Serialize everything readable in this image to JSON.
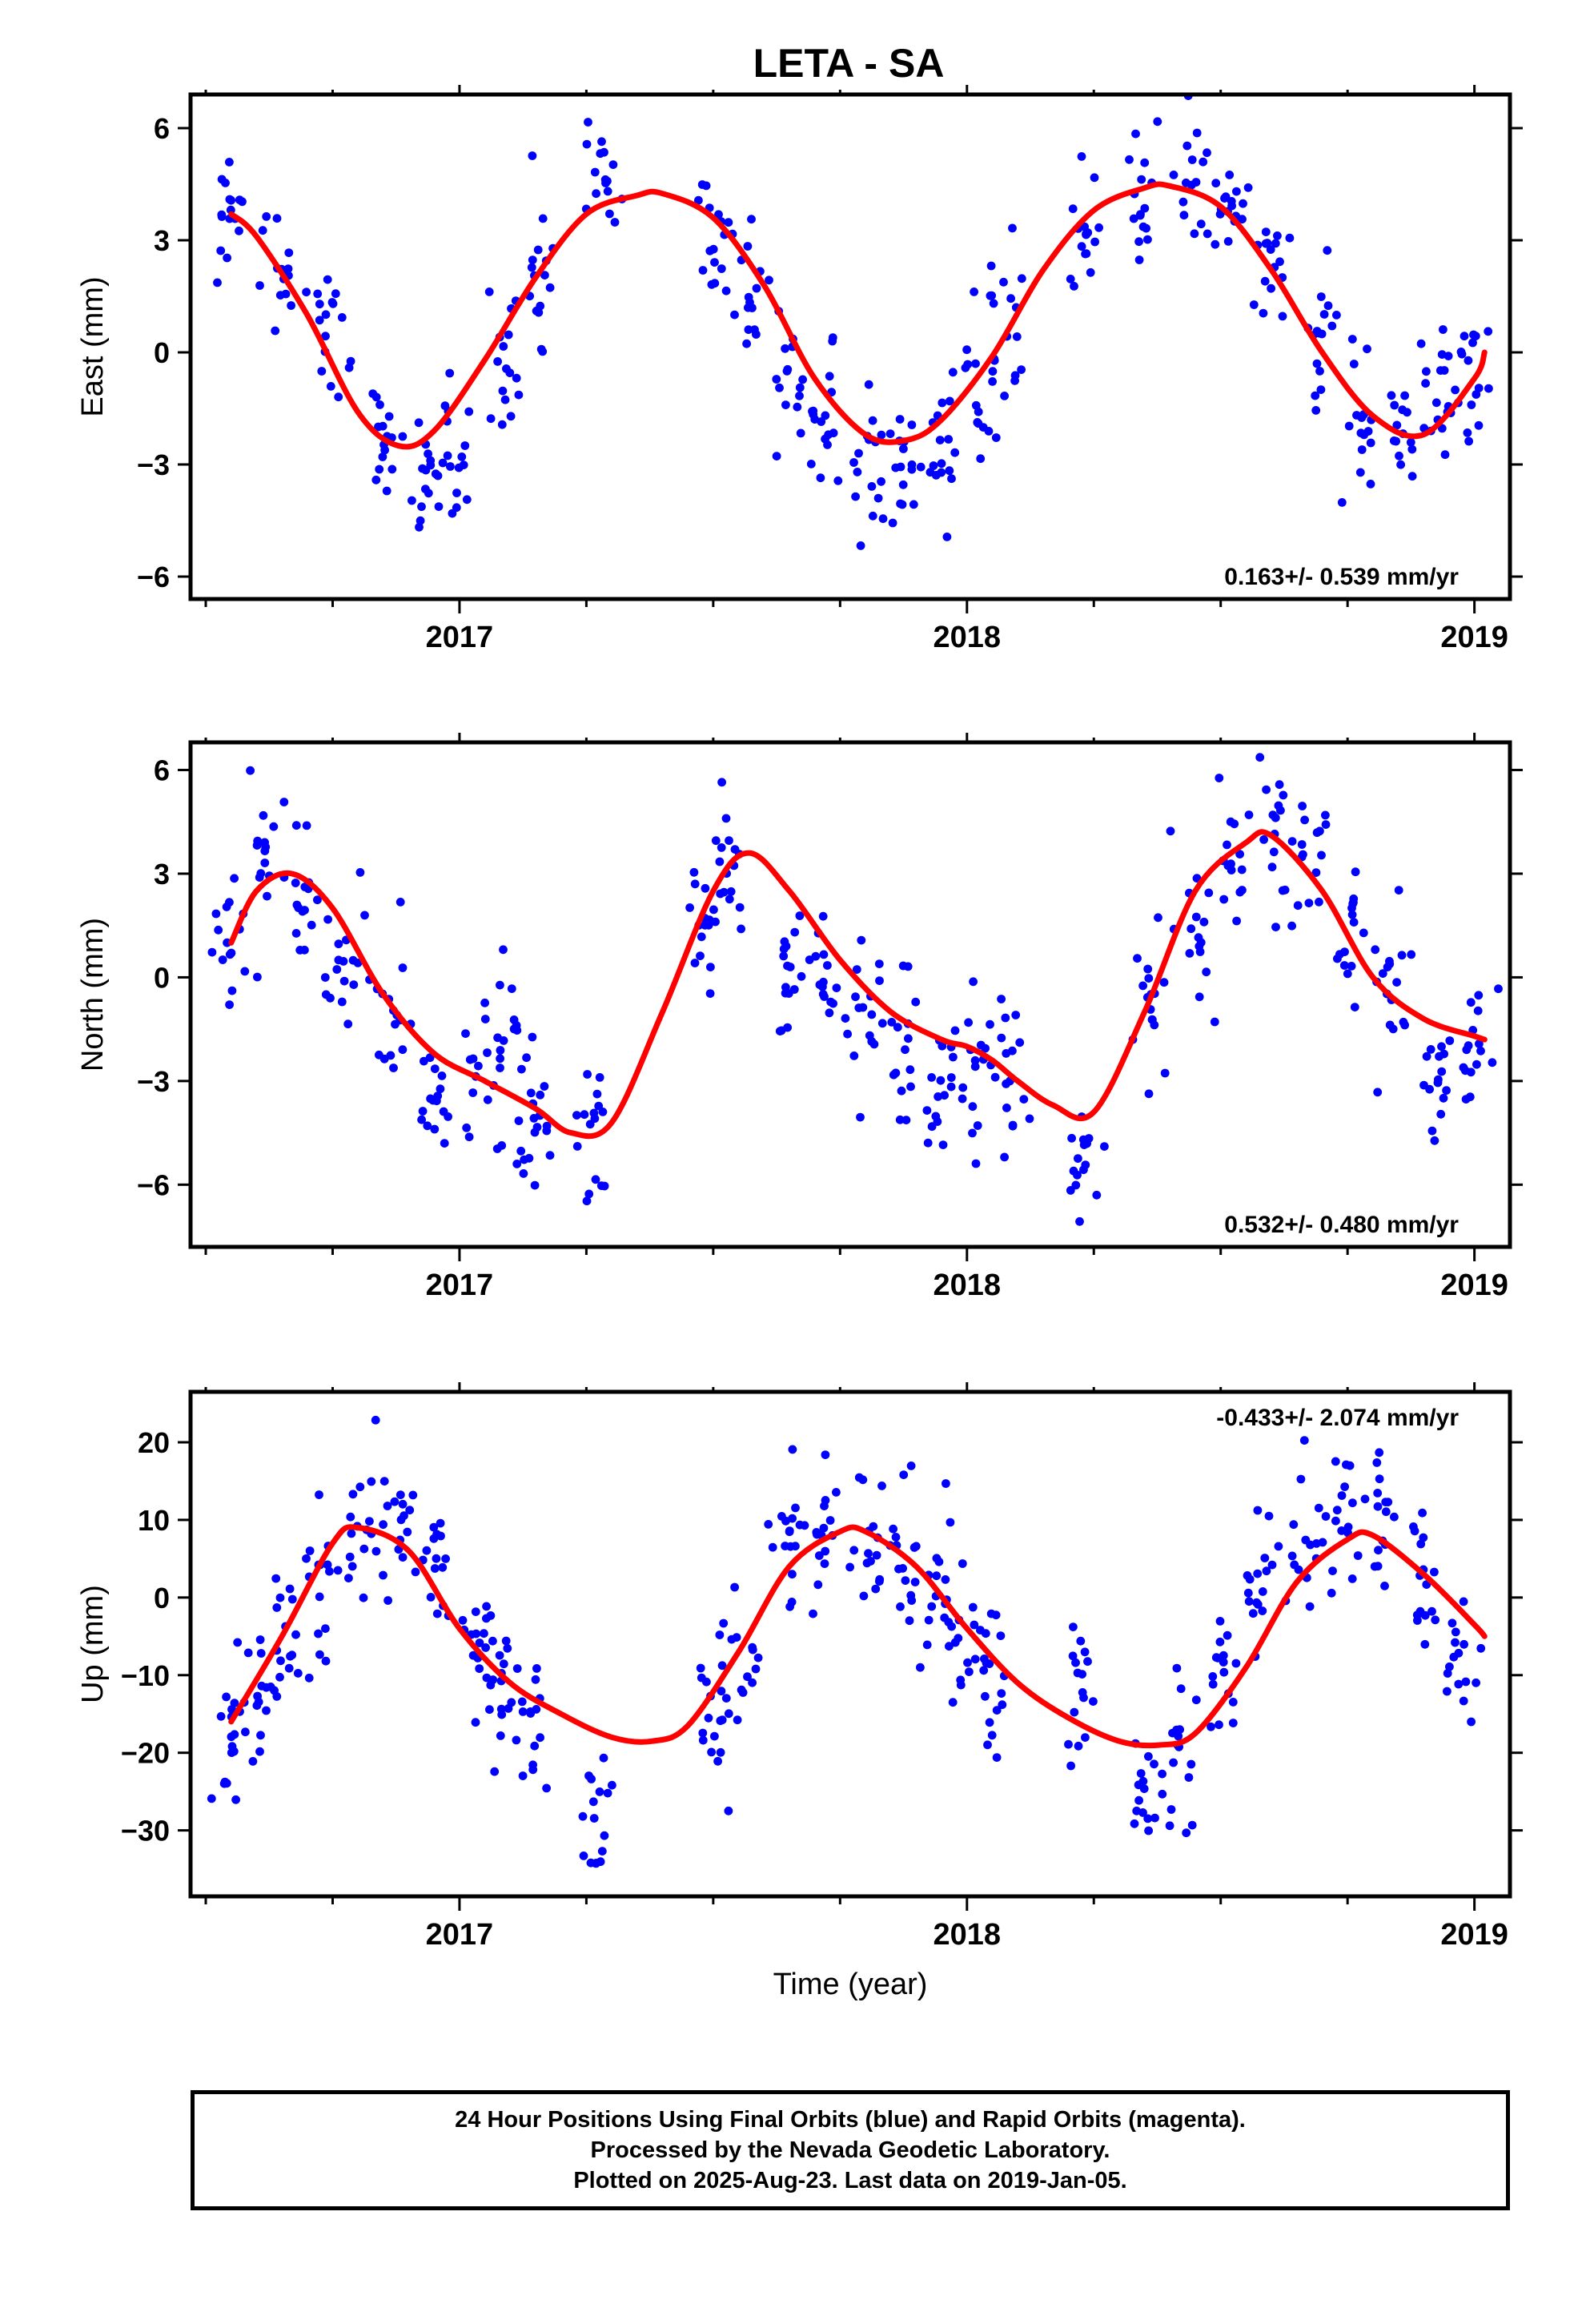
{
  "title": "LETA - SA",
  "xlabel": "Time (year)",
  "colors": {
    "final_orbits": "#0000ff",
    "model": "#ff0000",
    "frame": "#000000"
  },
  "footer": {
    "lines": [
      "24 Hour Positions Using Final Orbits (blue) and Rapid Orbits (magenta).",
      "Processed by the Nevada Geodetic Laboratory.",
      "Plotted on 2025-Aug-23. Last data on 2019-Jan-05."
    ]
  },
  "chart_data": [
    {
      "type": "scatter",
      "component": "East",
      "ylabel": "East (mm)",
      "rate_label": "0.163+/- 0.539 mm/yr",
      "xlim": [
        2016.47,
        2019.07
      ],
      "ylim": [
        -6.6,
        6.9
      ],
      "xticks": [
        2017,
        2018,
        2019
      ],
      "yticks": [
        -6,
        -3,
        0,
        3,
        6
      ],
      "ytick_labels": [
        "−6",
        "−3",
        "0",
        "3",
        "6"
      ],
      "model_curve": {
        "x": [
          2016.55,
          2016.6,
          2016.7,
          2016.8,
          2016.88,
          2016.95,
          2017.05,
          2017.15,
          2017.25,
          2017.35,
          2017.4,
          2017.5,
          2017.6,
          2017.7,
          2017.8,
          2017.88,
          2017.95,
          2018.05,
          2018.15,
          2018.25,
          2018.35,
          2018.4,
          2018.5,
          2018.6,
          2018.7,
          2018.8,
          2018.9,
          2019.0,
          2019.02
        ],
        "y": [
          3.7,
          3.1,
          1.0,
          -1.6,
          -2.5,
          -2.1,
          -0.2,
          2.0,
          3.7,
          4.2,
          4.25,
          3.6,
          1.8,
          -0.7,
          -2.2,
          -2.35,
          -1.8,
          -0.1,
          2.2,
          3.8,
          4.4,
          4.45,
          3.9,
          2.2,
          0.0,
          -1.7,
          -2.2,
          -0.7,
          0.0
        ]
      },
      "cluster_centers": {
        "x": [
          2016.55,
          2016.65,
          2016.75,
          2016.85,
          2016.93,
          2017.0,
          2017.08,
          2017.16,
          2017.28,
          2017.5,
          2017.57,
          2017.65,
          2017.72,
          2017.8,
          2017.88,
          2017.95,
          2018.02,
          2018.08,
          2018.23,
          2018.35,
          2018.45,
          2018.52,
          2018.6,
          2018.7,
          2018.78,
          2018.86,
          2018.94,
          2019.0
        ],
        "y": [
          3.7,
          2.5,
          0.2,
          -2.0,
          -3.2,
          -2.5,
          -0.3,
          2.2,
          4.5,
          2.8,
          1.5,
          -1.0,
          -1.8,
          -2.5,
          -3.0,
          -2.4,
          -1.2,
          0.5,
          3.0,
          4.2,
          4.5,
          3.5,
          2.5,
          0.8,
          -1.2,
          -1.8,
          -1.3,
          -0.5
        ]
      }
    },
    {
      "type": "scatter",
      "component": "North",
      "ylabel": "North (mm)",
      "rate_label": "0.532+/- 0.480 mm/yr",
      "xlim": [
        2016.47,
        2019.07
      ],
      "ylim": [
        -7.8,
        6.8
      ],
      "xticks": [
        2017,
        2018,
        2019
      ],
      "yticks": [
        -6,
        -3,
        0,
        3,
        6
      ],
      "ytick_labels": [
        "−6",
        "−3",
        "0",
        "3",
        "6"
      ],
      "model_curve": {
        "x": [
          2016.55,
          2016.6,
          2016.67,
          2016.75,
          2016.85,
          2016.95,
          2017.05,
          2017.15,
          2017.22,
          2017.3,
          2017.4,
          2017.5,
          2017.57,
          2017.65,
          2017.75,
          2017.85,
          2017.95,
          2018.0,
          2018.05,
          2018.1,
          2018.17,
          2018.25,
          2018.35,
          2018.45,
          2018.55,
          2018.6,
          2018.7,
          2018.8,
          2018.9,
          2019.0,
          2019.02
        ],
        "y": [
          1.0,
          2.5,
          3.0,
          2.0,
          -0.5,
          -2.2,
          -3.0,
          -3.8,
          -4.5,
          -4.2,
          -1.0,
          2.5,
          3.6,
          2.5,
          0.5,
          -1.0,
          -1.8,
          -2.0,
          -2.4,
          -3.0,
          -3.7,
          -3.9,
          -1.0,
          2.5,
          3.9,
          4.1,
          2.5,
          0.0,
          -1.2,
          -1.7,
          -1.8
        ]
      },
      "cluster_centers": {
        "x": [
          2016.55,
          2016.62,
          2016.7,
          2016.78,
          2016.86,
          2016.95,
          2017.05,
          2017.1,
          2017.15,
          2017.27,
          2017.47,
          2017.53,
          2017.65,
          2017.72,
          2017.8,
          2017.88,
          2017.95,
          2018.02,
          2018.08,
          2018.22,
          2018.35,
          2018.45,
          2018.52,
          2018.6,
          2018.68,
          2018.76,
          2018.84,
          2018.92,
          2019.0
        ],
        "y": [
          1.5,
          3.5,
          2.5,
          0.5,
          -0.8,
          -2.8,
          -3.2,
          -2.5,
          -4.5,
          -5.0,
          1.5,
          3.2,
          0.5,
          -0.5,
          -1.5,
          -2.5,
          -2.8,
          -2.2,
          -3.0,
          -4.8,
          -1.0,
          1.5,
          3.0,
          4.2,
          3.5,
          1.0,
          -0.5,
          -2.5,
          -2.0
        ]
      }
    },
    {
      "type": "scatter",
      "component": "Up",
      "ylabel": "Up (mm)",
      "rate_label": "-0.433+/- 2.074 mm/yr",
      "xlim": [
        2016.47,
        2019.07
      ],
      "ylim": [
        -38.5,
        26.5
      ],
      "xticks": [
        2017,
        2018,
        2019
      ],
      "yticks": [
        -30,
        -20,
        -10,
        0,
        10,
        20
      ],
      "ytick_labels": [
        "−30",
        "−20",
        "−10",
        "0",
        "10",
        "20"
      ],
      "model_curve": {
        "x": [
          2016.55,
          2016.65,
          2016.75,
          2016.8,
          2016.9,
          2017.0,
          2017.1,
          2017.2,
          2017.3,
          2017.38,
          2017.45,
          2017.55,
          2017.65,
          2017.75,
          2017.8,
          2017.9,
          2018.0,
          2018.1,
          2018.2,
          2018.3,
          2018.38,
          2018.45,
          2018.55,
          2018.65,
          2018.75,
          2018.8,
          2018.9,
          2019.0,
          2019.02
        ],
        "y": [
          -16.0,
          -5.0,
          7.0,
          9.0,
          6.0,
          -4.0,
          -11.0,
          -15.0,
          -18.0,
          -18.5,
          -16.5,
          -7.0,
          4.0,
          8.5,
          8.5,
          4.0,
          -4.0,
          -11.0,
          -15.5,
          -18.5,
          -19.0,
          -17.5,
          -9.0,
          2.0,
          7.5,
          8.0,
          3.0,
          -3.5,
          -5.0
        ]
      },
      "cluster_centers": {
        "x": [
          2016.55,
          2016.6,
          2016.65,
          2016.72,
          2016.8,
          2016.88,
          2016.95,
          2017.03,
          2017.08,
          2017.14,
          2017.27,
          2017.5,
          2017.55,
          2017.65,
          2017.72,
          2017.8,
          2017.88,
          2017.95,
          2018.0,
          2018.05,
          2018.22,
          2018.35,
          2018.42,
          2018.5,
          2018.58,
          2018.66,
          2018.74,
          2018.82,
          2018.9,
          2018.98
        ],
        "y": [
          -18.0,
          -14.0,
          -7.0,
          2.0,
          11.0,
          10.0,
          5.0,
          -5.0,
          -12.0,
          -18.0,
          -27.0,
          -15.0,
          -8.0,
          7.0,
          10.0,
          7.0,
          5.0,
          1.0,
          -5.0,
          -10.0,
          -13.0,
          -25.0,
          -20.0,
          -10.0,
          0.0,
          6.0,
          10.0,
          12.0,
          3.0,
          -10.0
        ]
      }
    }
  ]
}
